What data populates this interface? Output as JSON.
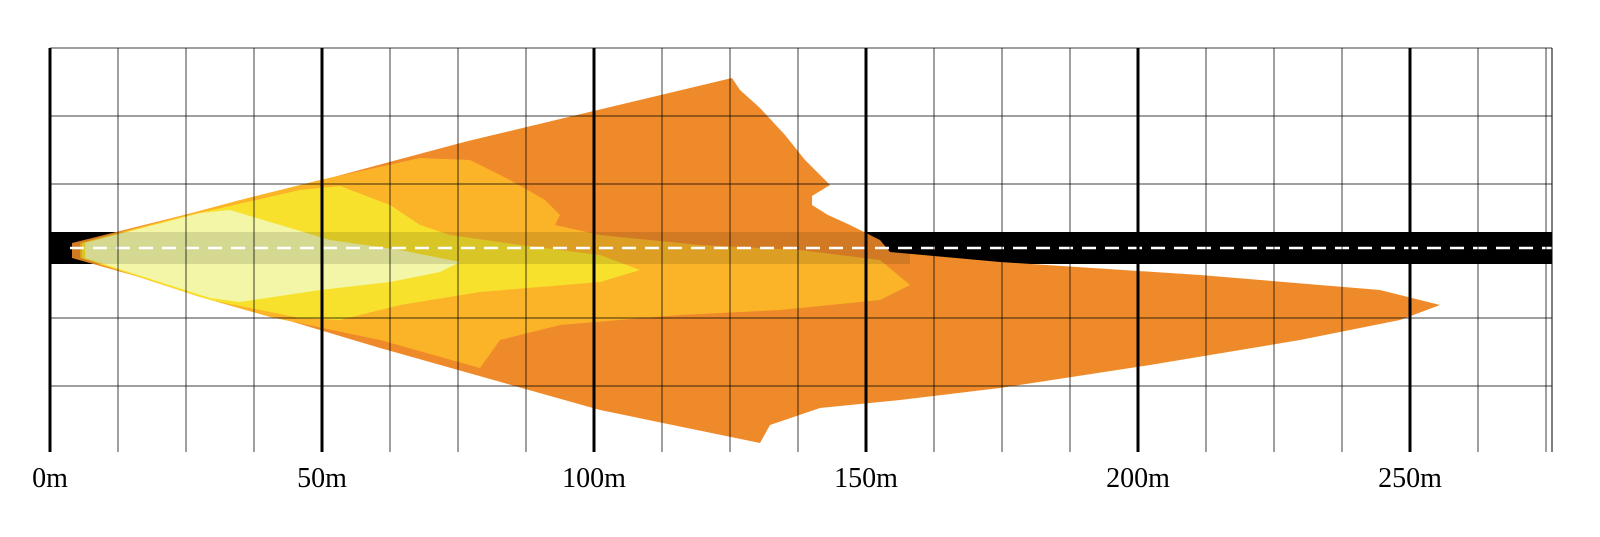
{
  "diagram": {
    "axis": {
      "labels": [
        {
          "value": 0,
          "text": "0m"
        },
        {
          "value": 50,
          "text": "50m"
        },
        {
          "value": 100,
          "text": "100m"
        },
        {
          "value": 150,
          "text": "150m"
        },
        {
          "value": 200,
          "text": "200m"
        },
        {
          "value": 250,
          "text": "250m"
        }
      ]
    },
    "road": {
      "color": "#000000",
      "center_line_color": "#ffffff"
    },
    "beam_zones": [
      {
        "name": "outer",
        "color": "#EF8A2A",
        "reach_m": 255
      },
      {
        "name": "mid",
        "color": "#FBB428",
        "reach_m": 158
      },
      {
        "name": "inner",
        "color": "#F8E12C",
        "reach_m": 107
      },
      {
        "name": "core",
        "color": "#F3F6A6",
        "reach_m": 76
      }
    ]
  }
}
